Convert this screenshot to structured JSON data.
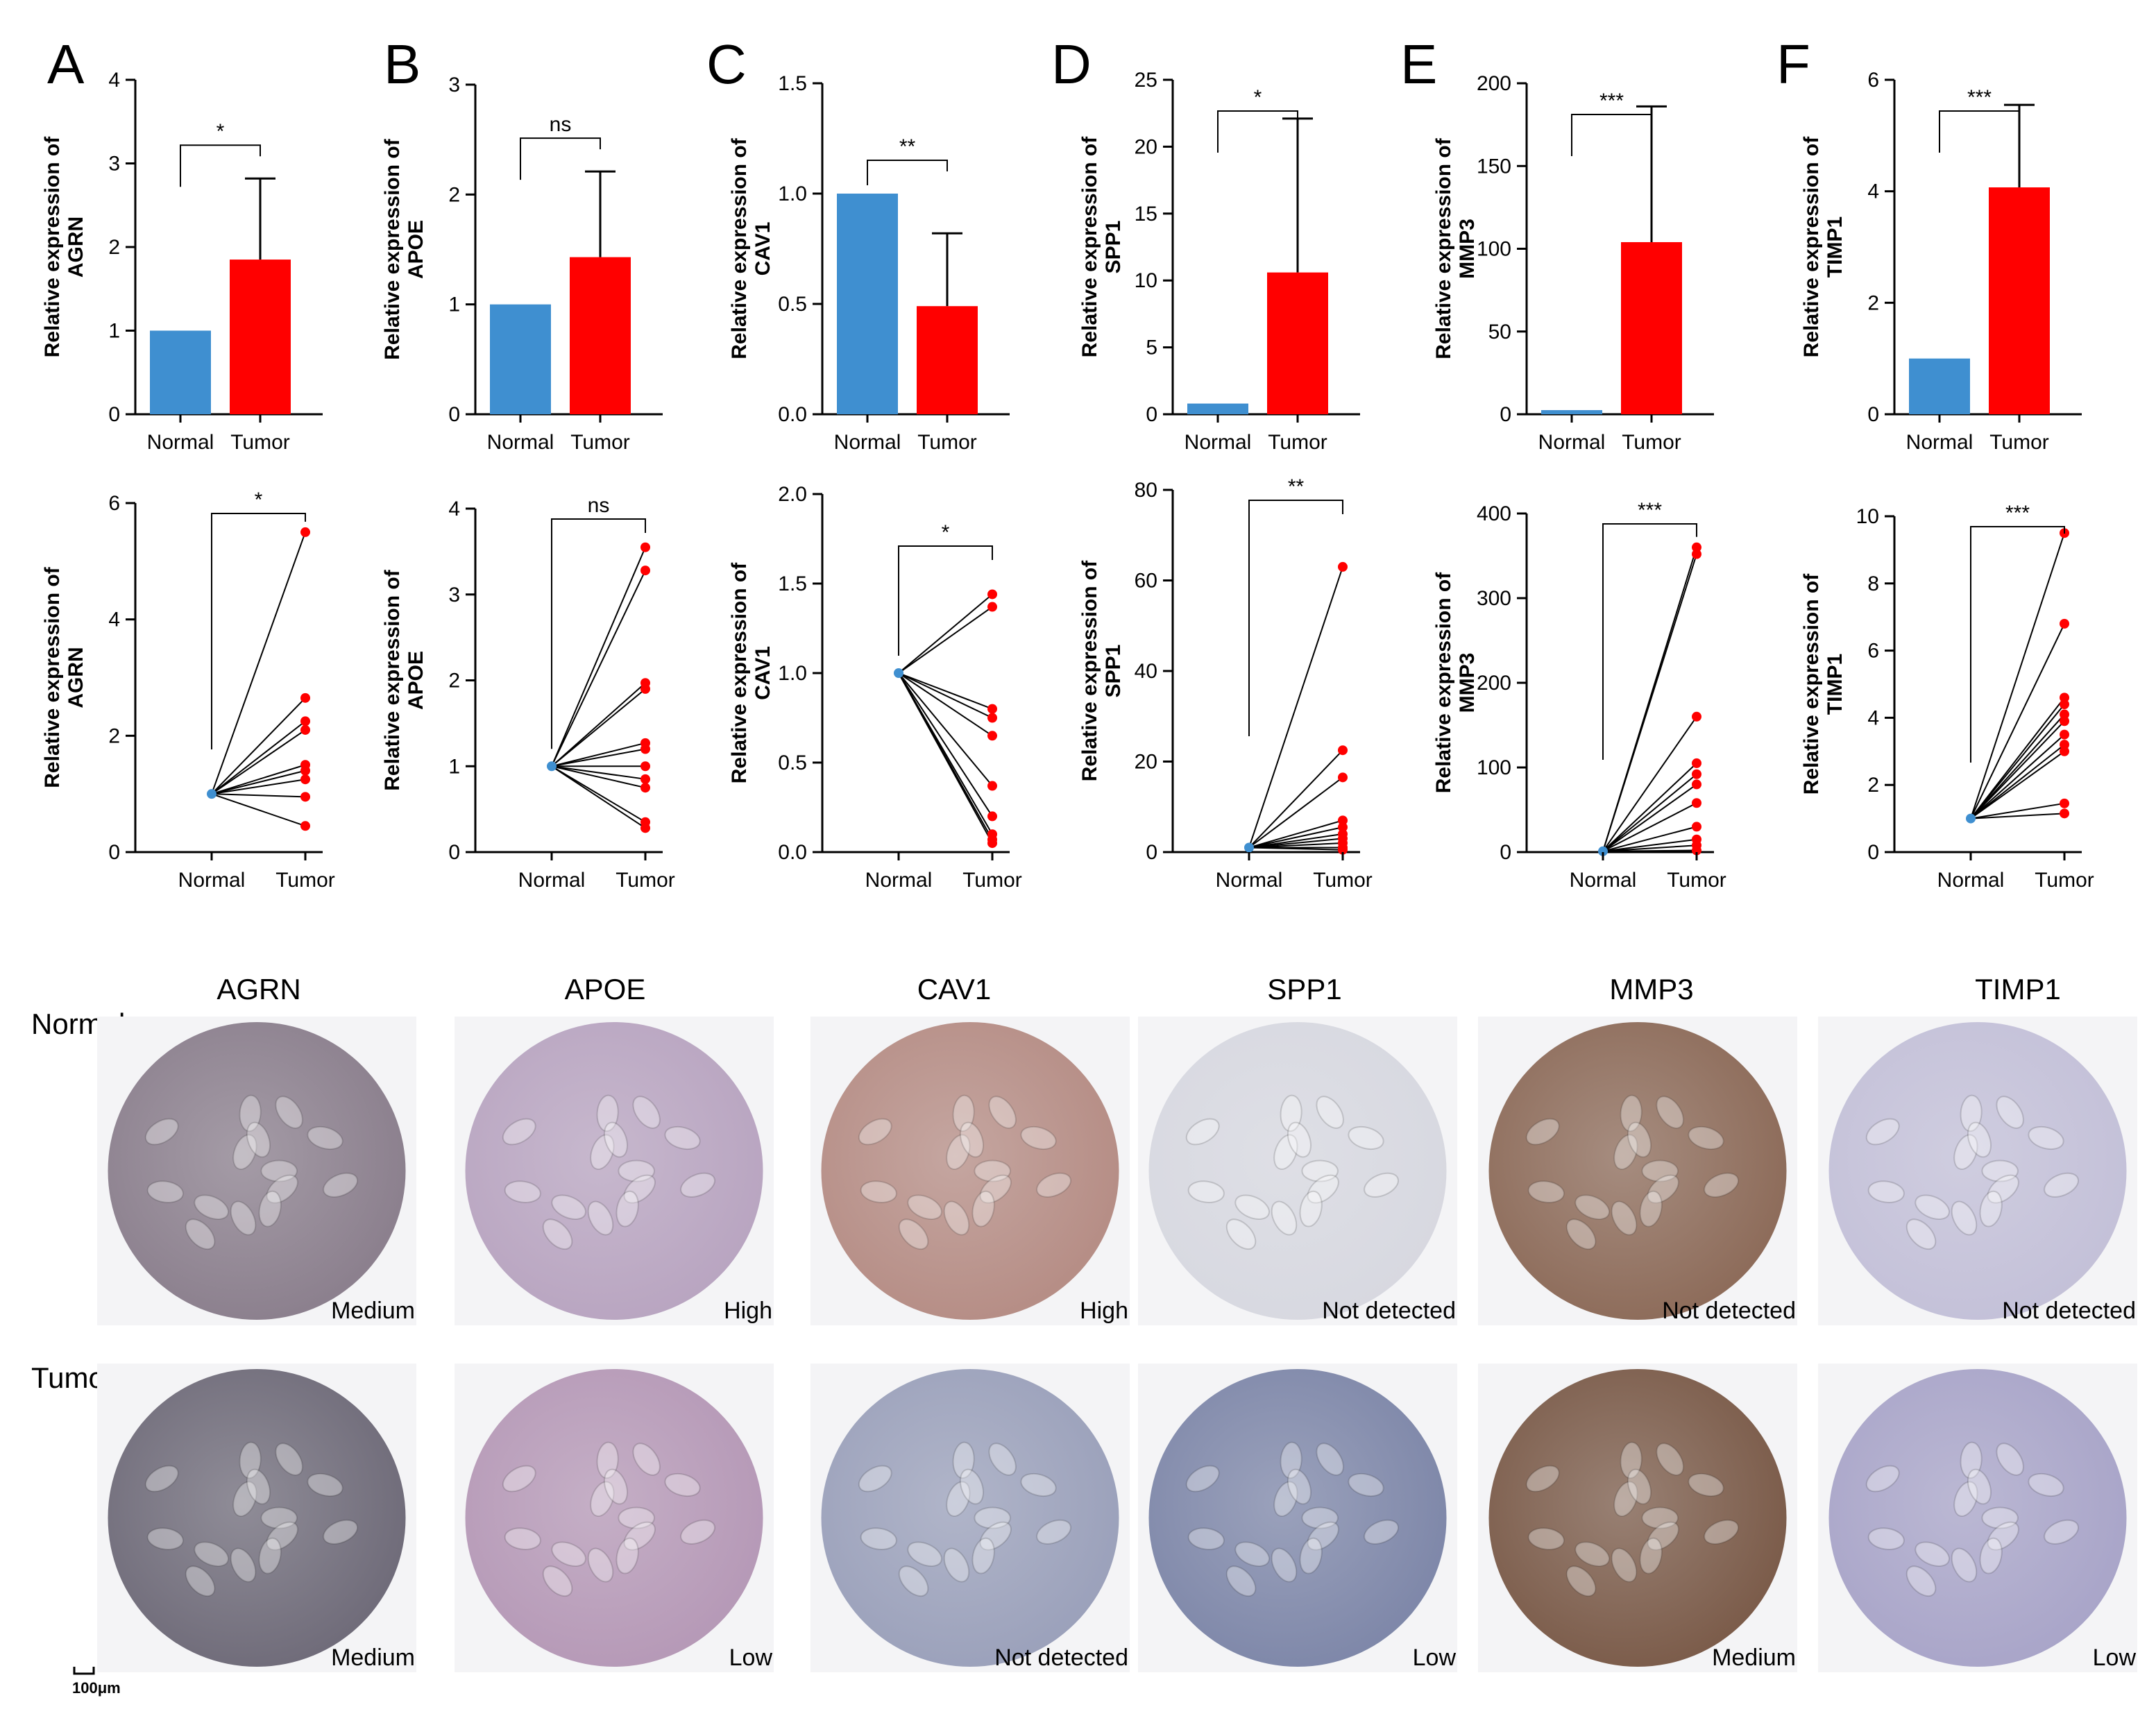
{
  "colors": {
    "normal": "#3f8fd0",
    "tumor": "#ff0000",
    "axis": "#000000",
    "line": "#000000"
  },
  "chart_data": [
    {
      "panel": "A",
      "gene": "AGRN",
      "type": "bar",
      "title": "",
      "ylabel": "Relative expression of AGRN",
      "categories": [
        "Normal",
        "Tumor"
      ],
      "values": [
        1.0,
        1.85
      ],
      "error": [
        0,
        0.97
      ],
      "ylim": [
        0,
        4
      ],
      "yticks": [
        "0",
        "1",
        "2",
        "3",
        "4"
      ],
      "significance": "*"
    },
    {
      "panel": "B",
      "gene": "APOE",
      "type": "bar",
      "title": "",
      "ylabel": "Relative expression of APOE",
      "categories": [
        "Normal",
        "Tumor"
      ],
      "values": [
        1.0,
        1.43
      ],
      "error": [
        0,
        0.78
      ],
      "ylim": [
        0,
        3
      ],
      "yticks": [
        "0",
        "1",
        "2",
        "3"
      ],
      "significance": "ns"
    },
    {
      "panel": "C",
      "gene": "CAV1",
      "type": "bar",
      "title": "",
      "ylabel": "Relative expression of CAV1",
      "categories": [
        "Normal",
        "Tumor"
      ],
      "values": [
        1.0,
        0.49
      ],
      "error": [
        0,
        0.33
      ],
      "ylim": [
        0,
        1.5
      ],
      "yticks": [
        "0.0",
        "0.5",
        "1.0",
        "1.5"
      ],
      "significance": "**"
    },
    {
      "panel": "D",
      "gene": "SPP1",
      "type": "bar",
      "title": "",
      "ylabel": "Relative expression of SPP1",
      "categories": [
        "Normal",
        "Tumor"
      ],
      "values": [
        0.8,
        10.6
      ],
      "error": [
        0,
        11.5
      ],
      "ylim": [
        0,
        25
      ],
      "yticks": [
        "0",
        "5",
        "10",
        "15",
        "20",
        "25"
      ],
      "significance": "*"
    },
    {
      "panel": "E",
      "gene": "MMP3",
      "type": "bar",
      "title": "",
      "ylabel": "Relative expression of MMP3",
      "categories": [
        "Normal",
        "Tumor"
      ],
      "values": [
        2.5,
        104
      ],
      "error": [
        0,
        82
      ],
      "ylim": [
        0,
        200
      ],
      "yticks": [
        "0",
        "50",
        "100",
        "150",
        "200"
      ],
      "significance": "***"
    },
    {
      "panel": "F",
      "gene": "TIMP1",
      "type": "bar",
      "title": "",
      "ylabel": "Relative expression of TIMP1",
      "categories": [
        "Normal",
        "Tumor"
      ],
      "values": [
        1.0,
        4.07
      ],
      "error": [
        0,
        1.48
      ],
      "ylim": [
        0,
        6
      ],
      "yticks": [
        "0",
        "2",
        "4",
        "6"
      ],
      "significance": "***"
    },
    {
      "gene": "AGRN",
      "type": "paired-line",
      "ylabel": "Relative expression of AGRN",
      "categories": [
        "Normal",
        "Tumor"
      ],
      "normal": 1.0,
      "tumor": [
        5.5,
        2.65,
        2.25,
        2.1,
        1.5,
        1.4,
        1.25,
        0.95,
        0.45
      ],
      "ylim": [
        0,
        6
      ],
      "yticks": [
        "0",
        "2",
        "4",
        "6"
      ],
      "significance": "*"
    },
    {
      "gene": "APOE",
      "type": "paired-line",
      "ylabel": "Relative expression of APOE",
      "categories": [
        "Normal",
        "Tumor"
      ],
      "normal": 1.0,
      "tumor": [
        3.55,
        3.28,
        1.97,
        1.9,
        1.27,
        1.2,
        1.0,
        0.85,
        0.75,
        0.35,
        0.28
      ],
      "ylim": [
        0,
        4
      ],
      "yticks": [
        "0",
        "1",
        "2",
        "3",
        "4"
      ],
      "significance": "ns"
    },
    {
      "gene": "CAV1",
      "type": "paired-line",
      "ylabel": "Relative expression of CAV1",
      "categories": [
        "Normal",
        "Tumor"
      ],
      "normal": 1.0,
      "tumor": [
        1.44,
        1.37,
        0.8,
        0.75,
        0.65,
        0.37,
        0.2,
        0.1,
        0.07,
        0.05
      ],
      "ylim": [
        0,
        2.0
      ],
      "yticks": [
        "0.0",
        "0.5",
        "1.0",
        "1.5",
        "2.0"
      ],
      "significance": "*"
    },
    {
      "gene": "SPP1",
      "type": "paired-line",
      "ylabel": "Relative expression of SPP1",
      "categories": [
        "Normal",
        "Tumor"
      ],
      "normal": 1.0,
      "tumor": [
        63,
        22.5,
        16.5,
        7,
        5.5,
        4,
        3,
        2,
        1,
        0.5
      ],
      "ylim": [
        0,
        80
      ],
      "yticks": [
        "0",
        "20",
        "40",
        "60",
        "80"
      ],
      "significance": "**"
    },
    {
      "gene": "MMP3",
      "type": "paired-line",
      "ylabel": "Relative expression of MMP3",
      "categories": [
        "Normal",
        "Tumor"
      ],
      "normal": 1.0,
      "tumor": [
        360,
        352,
        160,
        105,
        92,
        80,
        58,
        30,
        15,
        8,
        2
      ],
      "ylim": [
        0,
        400
      ],
      "yticks": [
        "0",
        "100",
        "200",
        "300",
        "400"
      ],
      "significance": "***"
    },
    {
      "gene": "TIMP1",
      "type": "paired-line",
      "ylabel": "Relative expression of TIMP1",
      "categories": [
        "Normal",
        "Tumor"
      ],
      "normal": 1.0,
      "tumor": [
        9.5,
        6.8,
        4.6,
        4.4,
        4.1,
        3.9,
        3.5,
        3.2,
        3.0,
        1.45,
        1.15
      ],
      "ylim": [
        0,
        10
      ],
      "yticks": [
        "0",
        "2",
        "4",
        "6",
        "8",
        "10"
      ],
      "significance": "***"
    }
  ],
  "ihc": {
    "gene_titles": [
      "AGRN",
      "APOE",
      "CAV1",
      "SPP1",
      "MMP3",
      "TIMP1"
    ],
    "row_labels": [
      "Normal",
      "Tumor"
    ],
    "normal_levels": [
      "Medium",
      "High",
      "High",
      "Not detected",
      "Not detected",
      "Not detected"
    ],
    "tumor_levels": [
      "Medium",
      "Low",
      "Not detected",
      "Low",
      "Medium",
      "Low"
    ],
    "scale_bar": "100μm",
    "normal_tones": [
      "#8a7e8c",
      "#b8a4c0",
      "#b58c84",
      "#d7d8e0",
      "#8c6a58",
      "#c3c0d8"
    ],
    "tumor_tones": [
      "#6e6a78",
      "#b598b6",
      "#9aa0ba",
      "#7d86a8",
      "#7a5a48",
      "#a8a4c8"
    ]
  }
}
